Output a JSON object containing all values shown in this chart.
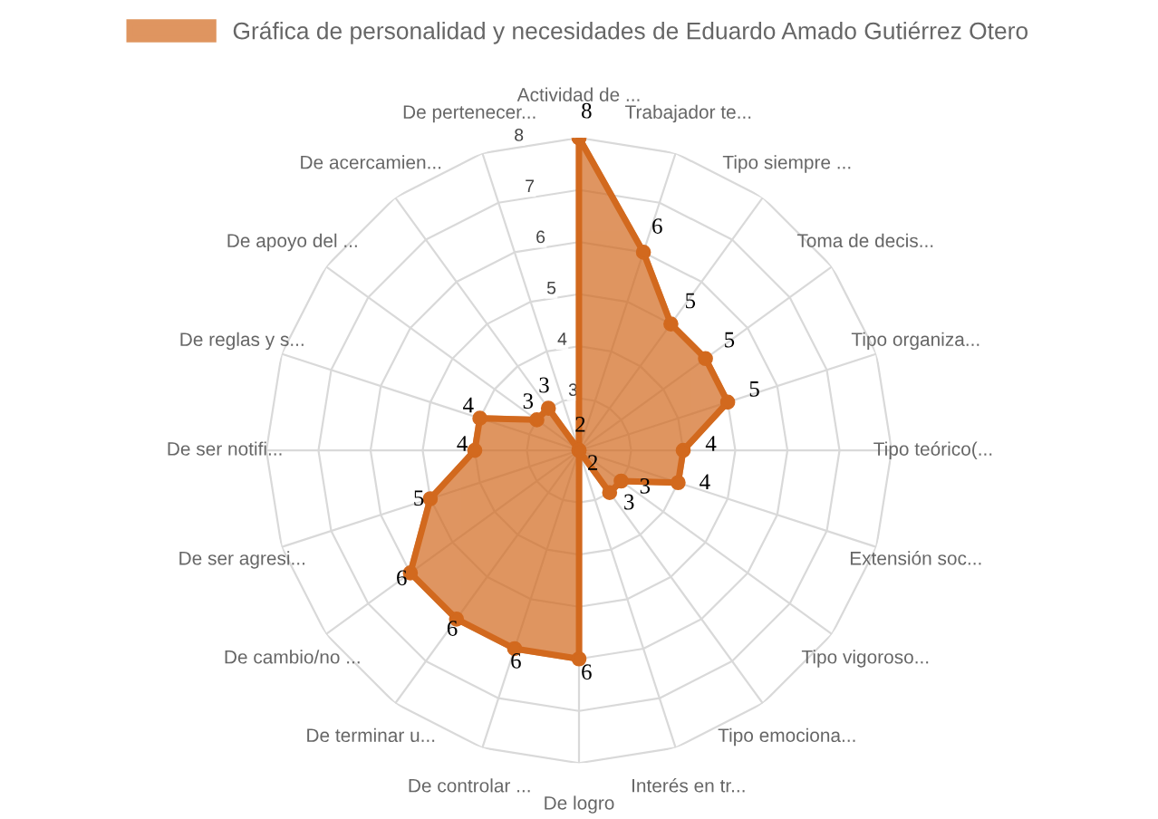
{
  "chart_data": {
    "type": "radar",
    "categories": [
      "Actividad de ...",
      "Trabajador te...",
      "Tipo siempre ...",
      "Toma de decis...",
      "Tipo organiza...",
      "Tipo teórico(...",
      "Extensión soc...",
      "Tipo vigoroso...",
      "Tipo emociona...",
      "Interés en tr...",
      "De logro",
      "De controlar ...",
      "De terminar u...",
      "De cambio/no ...",
      "De ser agresi...",
      "De ser notifi...",
      "De reglas y s...",
      "De apoyo del ...",
      "De acercamien...",
      "De pertenecer..."
    ],
    "series": [
      {
        "name": "Gráfica de personalidad y necesidades de Eduardo Amado Gutiérrez Otero",
        "color": "#d2691e",
        "values": [
          8,
          6,
          5,
          5,
          5,
          4,
          4,
          3,
          3,
          2,
          6,
          6,
          6,
          6,
          5,
          4,
          4,
          3,
          3,
          2
        ]
      }
    ],
    "ylim": [
      2,
      8
    ],
    "yticks": [
      3,
      4,
      5,
      6,
      7,
      8
    ],
    "grid": true,
    "legend": "top",
    "data_labels": true,
    "marker": "circle"
  }
}
